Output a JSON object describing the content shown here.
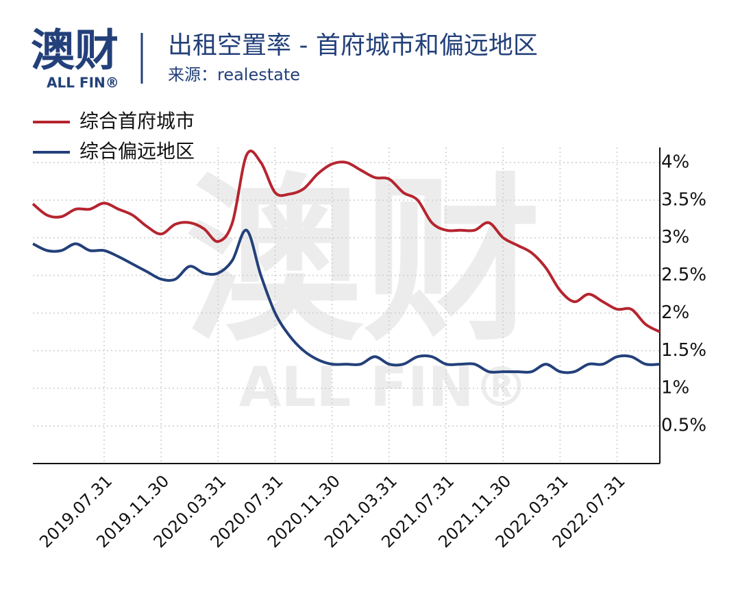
{
  "chart_data": {
    "type": "line",
    "logo": {
      "name": "澳财",
      "sub": "ALL FIN®"
    },
    "title": "出租空置率 - 首府城市和偏远地区",
    "subtitle": "来源：realestate",
    "categories": [
      null,
      null,
      null,
      null,
      null,
      "2019.07.31",
      null,
      null,
      null,
      "2019.11.30",
      null,
      null,
      null,
      "2020.03.31",
      null,
      null,
      null,
      "2020.07.31",
      null,
      null,
      null,
      "2020.11.30",
      null,
      null,
      null,
      "2021.03.31",
      null,
      null,
      null,
      "2021.07.31",
      null,
      null,
      null,
      "2021.11.30",
      null,
      null,
      null,
      "2022.03.31",
      null,
      null,
      null,
      "2022.07.31",
      null,
      null,
      null
    ],
    "series": [
      {
        "name": "综合首府城市",
        "color": "#b5252f",
        "values": [
          3.45,
          3.3,
          3.28,
          3.38,
          3.38,
          3.46,
          3.38,
          3.3,
          3.15,
          3.05,
          3.18,
          3.2,
          3.12,
          2.95,
          3.2,
          4.1,
          4.0,
          3.6,
          3.58,
          3.65,
          3.85,
          3.98,
          4.0,
          3.9,
          3.8,
          3.78,
          3.6,
          3.5,
          3.2,
          3.1,
          3.1,
          3.1,
          3.2,
          3.0,
          2.9,
          2.8,
          2.6,
          2.3,
          2.15,
          2.25,
          2.15,
          2.05,
          2.05,
          1.85,
          1.75
        ]
      },
      {
        "name": "综合偏远地区",
        "color": "#23407a",
        "values": [
          2.92,
          2.83,
          2.83,
          2.92,
          2.83,
          2.83,
          2.75,
          2.65,
          2.55,
          2.45,
          2.45,
          2.62,
          2.53,
          2.53,
          2.7,
          3.1,
          2.5,
          2.0,
          1.7,
          1.5,
          1.38,
          1.32,
          1.32,
          1.32,
          1.42,
          1.32,
          1.32,
          1.42,
          1.42,
          1.32,
          1.32,
          1.32,
          1.22,
          1.22,
          1.22,
          1.22,
          1.32,
          1.22,
          1.22,
          1.32,
          1.32,
          1.42,
          1.42,
          1.32,
          1.32
        ]
      }
    ],
    "ylim": [
      0,
      4.2
    ],
    "yticks": [
      {
        "value": 0.5,
        "label": "0.5%"
      },
      {
        "value": 1,
        "label": "1%"
      },
      {
        "value": 1.5,
        "label": "1.5%"
      },
      {
        "value": 2,
        "label": "2%"
      },
      {
        "value": 2.5,
        "label": "2.5%"
      },
      {
        "value": 3,
        "label": "3%"
      },
      {
        "value": 3.5,
        "label": "3.5%"
      },
      {
        "value": 4,
        "label": "4%"
      }
    ],
    "grid": true,
    "legend": "upper left"
  }
}
